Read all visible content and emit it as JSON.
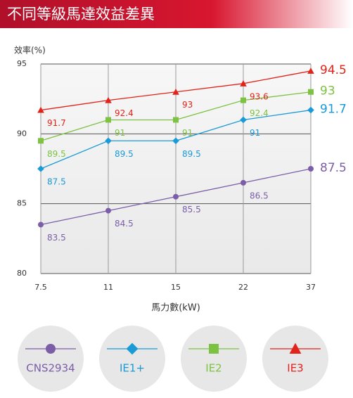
{
  "chart_data": {
    "type": "line",
    "title": "不同等級馬達效益差異",
    "ylabel": "效率(%)",
    "xlabel": "馬力數(kW)",
    "categories": [
      "7.5",
      "11",
      "15",
      "22",
      "37"
    ],
    "ylim": [
      80,
      95
    ],
    "yticks": [
      80,
      85,
      90,
      95
    ],
    "grid": true,
    "series": [
      {
        "name": "CNS2934",
        "color": "#7b5ea7",
        "marker": "circle",
        "values": [
          83.5,
          84.5,
          85.5,
          86.5,
          87.5
        ]
      },
      {
        "name": "IE1+",
        "color": "#1a9ad6",
        "marker": "diamond",
        "values": [
          87.5,
          89.5,
          89.5,
          91,
          91.7
        ]
      },
      {
        "name": "IE2",
        "color": "#7dc242",
        "marker": "square",
        "values": [
          89.5,
          91,
          91,
          92.4,
          93
        ]
      },
      {
        "name": "IE3",
        "color": "#e2231a",
        "marker": "triangle",
        "values": [
          91.7,
          92.4,
          93,
          93.6,
          94.5
        ]
      }
    ]
  }
}
